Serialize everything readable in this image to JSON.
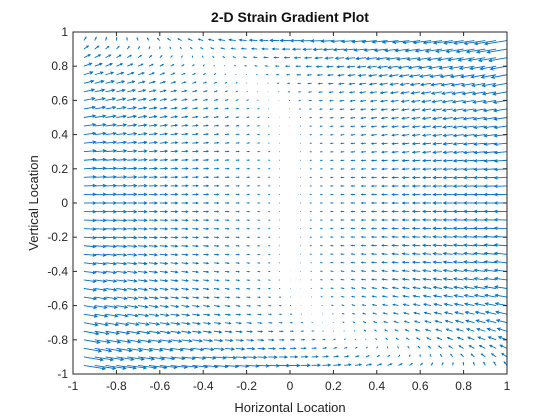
{
  "chart_data": {
    "type": "quiver",
    "title": "2-D Strain Gradient Plot",
    "xlabel": "Horizontal Location",
    "ylabel": "Vertical Location",
    "xlim": [
      -1,
      1
    ],
    "ylim": [
      -1,
      1
    ],
    "xticks": [
      "-1",
      "-0.8",
      "-0.6",
      "-0.4",
      "-0.2",
      "0",
      "0.2",
      "0.4",
      "0.6",
      "0.8",
      "1"
    ],
    "yticks": [
      "1",
      "0.8",
      "0.6",
      "0.4",
      "0.2",
      "0",
      "-0.2",
      "-0.4",
      "-0.6",
      "-0.8",
      "-1"
    ],
    "grid": false,
    "color": "#0072BD",
    "field": {
      "x_range": [
        -0.95,
        1.0
      ],
      "x_step": 0.05,
      "y_range": [
        -0.95,
        0.95
      ],
      "y_step": 0.05,
      "u": "-(x + y^5)",
      "v": "-0.3*x*y",
      "note": "u = -(x + y^5), v = -0.3xy"
    }
  }
}
